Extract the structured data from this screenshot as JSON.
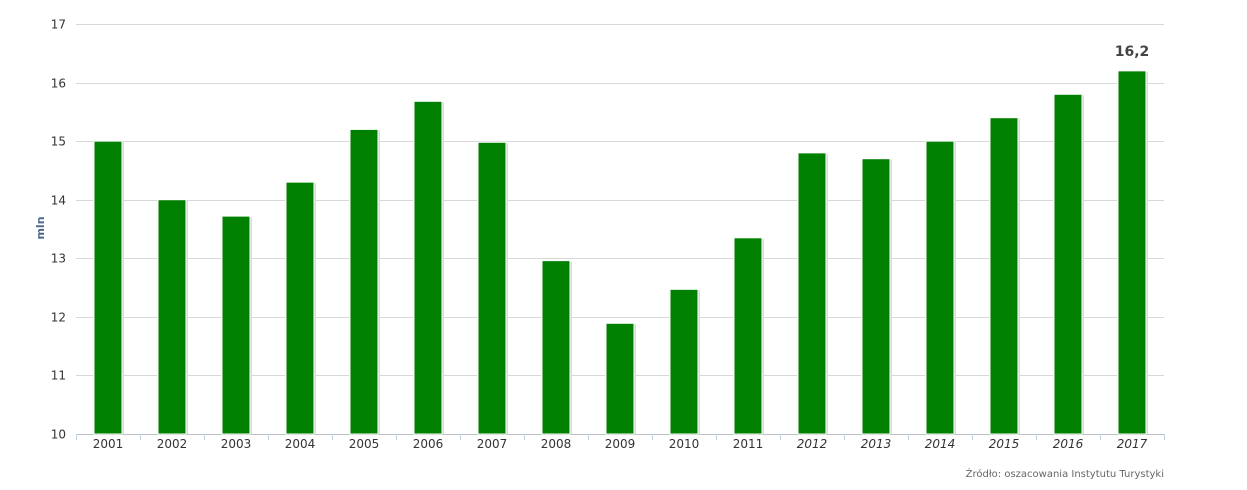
{
  "chart_data": {
    "type": "bar",
    "categories": [
      "2001",
      "2002",
      "2003",
      "2004",
      "2005",
      "2006",
      "2007",
      "2008",
      "2009",
      "2010",
      "2011",
      "2012",
      "2013",
      "2014",
      "2015",
      "2016",
      "2017"
    ],
    "italic_categories": [
      "2012",
      "2013",
      "2014",
      "2015",
      "2016",
      "2017"
    ],
    "values": [
      15.0,
      14.0,
      13.72,
      14.3,
      15.2,
      15.68,
      14.98,
      12.96,
      11.89,
      12.47,
      13.35,
      14.8,
      14.7,
      15.0,
      15.4,
      15.8,
      16.2
    ],
    "ylabel": "mln",
    "ylim": [
      10,
      17
    ],
    "yticks": [
      10,
      11,
      12,
      13,
      14,
      15,
      16,
      17
    ],
    "grid": true,
    "bar_color": "#008000",
    "data_labels": [
      {
        "category": "2017",
        "text": "16,2"
      }
    ]
  },
  "source": "Źródło: oszacowania Instytutu Turystyki"
}
